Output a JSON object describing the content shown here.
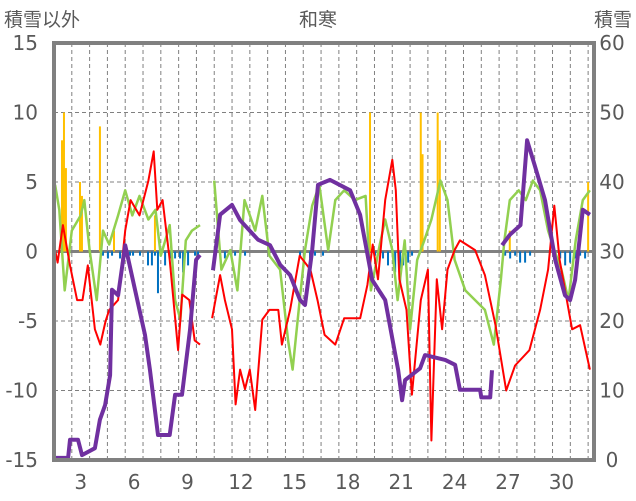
{
  "chart_data": {
    "type": "line",
    "title": "和寒",
    "ylabel_left": "積雪以外",
    "ylabel_right": "積雪",
    "xlim": [
      2,
      32.33
    ],
    "ylim_left": [
      -15,
      15
    ],
    "ylim_right": [
      0,
      60
    ],
    "yticks_left": [
      -15,
      -10,
      -5,
      0,
      5,
      10,
      15
    ],
    "yticks_right": [
      0,
      10,
      20,
      30,
      40,
      50,
      60
    ],
    "xtick_labels": [
      "3",
      "6",
      "9",
      "12",
      "15",
      "18",
      "21",
      "24",
      "27",
      "30"
    ],
    "xtick_days": [
      3,
      6,
      9,
      12,
      15,
      18,
      21,
      24,
      27,
      30
    ],
    "grid": true,
    "colors": {
      "snow": "#7030a0",
      "red": "#ff0000",
      "green": "#92d050",
      "yellow": "#ffc000",
      "blue": "#0070c0",
      "axis": "#808080"
    },
    "series": [
      {
        "name": "red",
        "axis": "left",
        "points": [
          [
            2.06,
            0.1
          ],
          [
            2.2,
            -0.8
          ],
          [
            2.5,
            1.9
          ],
          [
            2.9,
            -1
          ],
          [
            3.3,
            -3.5
          ],
          [
            3.6,
            -3.5
          ],
          [
            3.9,
            -1
          ],
          [
            4.3,
            -5.6
          ],
          [
            4.6,
            -6.7
          ],
          [
            4.9,
            -5
          ],
          [
            5.1,
            -4.2
          ],
          [
            5.6,
            -3.5
          ],
          [
            6.0,
            1.5
          ],
          [
            6.3,
            3.7
          ],
          [
            6.8,
            2.6
          ],
          [
            7.3,
            5.1
          ],
          [
            7.6,
            7.2
          ],
          [
            7.8,
            3
          ],
          [
            8.1,
            3.7
          ],
          [
            8.5,
            -0.6
          ],
          [
            8.97,
            -7.1
          ],
          [
            9.2,
            -3.1
          ],
          [
            9.6,
            -3.5
          ],
          [
            9.9,
            -6.4
          ],
          [
            10.2,
            -6.7
          ],
          null,
          [
            10.88,
            -4.8
          ],
          [
            11.33,
            -1.7
          ],
          [
            11.6,
            -3.5
          ],
          [
            12.0,
            -5.6
          ],
          [
            12.2,
            -11
          ],
          [
            12.45,
            -8.5
          ],
          [
            12.73,
            -9.9
          ],
          [
            13.0,
            -8.5
          ],
          [
            13.3,
            -11.4
          ],
          [
            13.7,
            -4.9
          ],
          [
            14.1,
            -4.2
          ],
          [
            14.6,
            -4.2
          ],
          [
            14.8,
            -6.7
          ],
          [
            15.26,
            -4.2
          ],
          [
            15.8,
            -0.3
          ],
          [
            16.4,
            -1.3
          ],
          [
            16.8,
            -3.5
          ],
          [
            17.2,
            -6
          ],
          [
            17.8,
            -6.7
          ],
          [
            18.3,
            -4.8
          ],
          [
            19.2,
            -4.8
          ],
          [
            19.6,
            -2.4
          ],
          [
            19.9,
            0.5
          ],
          [
            20.2,
            -2
          ],
          [
            20.6,
            3.7
          ],
          [
            21.0,
            6.6
          ],
          [
            21.2,
            4.4
          ],
          [
            21.4,
            -2
          ],
          [
            21.8,
            -4.2
          ],
          [
            22.1,
            -10.3
          ],
          [
            22.6,
            -3.5
          ],
          [
            23.0,
            -1.3
          ],
          [
            23.2,
            -13.6
          ],
          [
            23.5,
            -2
          ],
          [
            23.8,
            -5.6
          ],
          [
            24.1,
            -1.3
          ],
          [
            24.5,
            0.1
          ],
          [
            24.8,
            0.8
          ],
          [
            25.65,
            0.1
          ],
          [
            26.2,
            -1.7
          ],
          [
            26.8,
            -5.3
          ],
          [
            27.4,
            -10
          ],
          [
            27.9,
            -8.2
          ],
          [
            28.7,
            -7.1
          ],
          [
            29.3,
            -4.2
          ],
          [
            29.75,
            -1.3
          ],
          [
            30.1,
            3.3
          ],
          [
            30.4,
            -0.6
          ],
          [
            31.1,
            -5.6
          ],
          [
            31.55,
            -5.3
          ],
          [
            32.1,
            -8.5
          ]
        ]
      },
      {
        "name": "green",
        "axis": "left",
        "points": [
          [
            2.06,
            4.8
          ],
          [
            2.3,
            3
          ],
          [
            2.6,
            -2.8
          ],
          [
            3.0,
            1.5
          ],
          [
            3.5,
            2.6
          ],
          [
            3.7,
            3.7
          ],
          [
            4.0,
            0.1
          ],
          [
            4.4,
            -3.5
          ],
          [
            4.75,
            1.5
          ],
          [
            5.1,
            0.5
          ],
          [
            5.6,
            2.6
          ],
          [
            6.0,
            4.4
          ],
          [
            6.4,
            2.6
          ],
          [
            6.8,
            4.0
          ],
          [
            7.3,
            2.3
          ],
          [
            7.7,
            3
          ],
          [
            8.0,
            -0.3
          ],
          [
            8.5,
            1.9
          ],
          [
            8.8,
            -3.5
          ],
          [
            9.1,
            -4.9
          ],
          [
            9.4,
            0.8
          ],
          [
            9.75,
            1.5
          ],
          [
            10.2,
            1.9
          ],
          null,
          [
            11.0,
            5.1
          ],
          [
            11.4,
            -1.3
          ],
          [
            11.9,
            0.1
          ],
          [
            12.3,
            -2.8
          ],
          [
            12.7,
            3.7
          ],
          [
            13.3,
            1.5
          ],
          [
            13.7,
            4
          ],
          [
            14.1,
            -0.3
          ],
          [
            14.7,
            -1.3
          ],
          [
            15.15,
            -6.4
          ],
          [
            15.4,
            -8.5
          ],
          [
            15.8,
            -3.5
          ],
          [
            16.1,
            0.1
          ],
          [
            16.5,
            3.3
          ],
          [
            16.9,
            4.8
          ],
          [
            17.4,
            0.1
          ],
          [
            17.8,
            3.7
          ],
          [
            18.3,
            4.4
          ],
          [
            18.9,
            3.7
          ],
          [
            19.5,
            4
          ],
          [
            19.8,
            -2.8
          ],
          [
            20.3,
            0.5
          ],
          [
            20.6,
            2.3
          ],
          [
            21.0,
            0.1
          ],
          [
            21.3,
            -3.5
          ],
          [
            21.7,
            0.8
          ],
          [
            22.0,
            -5.6
          ],
          [
            22.4,
            -0.6
          ],
          [
            22.8,
            0.8
          ],
          [
            23.2,
            2.3
          ],
          [
            23.7,
            5.1
          ],
          [
            24.1,
            3.7
          ],
          [
            24.5,
            -0.6
          ],
          [
            25.1,
            -2.8
          ],
          [
            25.65,
            -3.5
          ],
          [
            26.2,
            -4.2
          ],
          [
            26.7,
            -6.7
          ],
          [
            27.1,
            -2
          ],
          [
            27.3,
            0.8
          ],
          [
            27.6,
            3.7
          ],
          [
            28.1,
            4.4
          ],
          [
            28.5,
            3.7
          ],
          [
            28.9,
            5.1
          ],
          [
            29.3,
            4.4
          ],
          [
            29.75,
            1.5
          ],
          [
            30.1,
            0.1
          ],
          [
            30.5,
            -1.3
          ],
          [
            30.9,
            -3.5
          ],
          [
            31.3,
            0.8
          ],
          [
            31.7,
            3.7
          ],
          [
            32.1,
            4.4
          ]
        ]
      },
      {
        "name": "snow-depth",
        "axis": "right",
        "points": [
          [
            2.06,
            0.3
          ],
          [
            2.79,
            0.3
          ],
          [
            2.9,
            2.9
          ],
          [
            3.35,
            2.9
          ],
          [
            3.57,
            0.7
          ],
          [
            4.3,
            1.7
          ],
          [
            4.58,
            5.8
          ],
          [
            4.87,
            7.9
          ],
          [
            5.15,
            12.2
          ],
          [
            5.26,
            24.5
          ],
          [
            5.6,
            23.7
          ],
          [
            6.0,
            30.9
          ],
          [
            6.55,
            24.5
          ],
          [
            7.11,
            18
          ],
          [
            7.39,
            12.9
          ],
          [
            7.84,
            3.6
          ],
          [
            8.5,
            3.6
          ],
          [
            8.8,
            9.4
          ],
          [
            9.19,
            9.4
          ],
          [
            9.64,
            18.7
          ],
          [
            9.98,
            28.8
          ],
          [
            10.2,
            29.5
          ],
          null,
          [
            10.93,
            27.3
          ],
          [
            11.33,
            35.3
          ],
          [
            12.0,
            36.7
          ],
          [
            12.45,
            34.5
          ],
          [
            13.46,
            31.7
          ],
          [
            14.13,
            30.9
          ],
          [
            14.7,
            28.1
          ],
          [
            15.26,
            26.6
          ],
          [
            15.82,
            23
          ],
          [
            16.1,
            22.3
          ],
          [
            16.5,
            30.2
          ],
          [
            16.83,
            39.6
          ],
          [
            17.5,
            40.3
          ],
          [
            18.63,
            38.8
          ],
          [
            19.19,
            35.3
          ],
          [
            19.87,
            25.9
          ],
          [
            20.6,
            23
          ],
          [
            21.33,
            12.9
          ],
          [
            21.55,
            8.6
          ],
          [
            21.72,
            11.5
          ],
          [
            22.56,
            13.2
          ],
          [
            22.84,
            15.1
          ],
          [
            23.97,
            14.4
          ],
          [
            24.53,
            13.7
          ],
          [
            24.8,
            10.1
          ],
          [
            25.93,
            10.1
          ],
          [
            26.0,
            9
          ],
          [
            26.5,
            9
          ],
          [
            26.6,
            12.9
          ],
          null,
          [
            27.17,
            30.9
          ],
          [
            27.6,
            32.4
          ],
          [
            28.2,
            33.8
          ],
          [
            28.57,
            46
          ],
          [
            29.0,
            42.4
          ],
          [
            29.58,
            37.4
          ],
          [
            30.15,
            28.8
          ],
          [
            30.7,
            23.7
          ],
          [
            30.99,
            23
          ],
          [
            31.27,
            25.9
          ],
          [
            31.55,
            32.4
          ],
          [
            31.7,
            36
          ],
          [
            32.1,
            35.3
          ]
        ]
      }
    ],
    "bars": [
      {
        "name": "yellow",
        "axis": "left",
        "points": [
          [
            2.45,
            8
          ],
          [
            2.56,
            10
          ],
          [
            2.67,
            6
          ],
          [
            3.46,
            5
          ],
          [
            3.57,
            4
          ],
          [
            4.58,
            9
          ],
          [
            5.37,
            1.5
          ],
          [
            7.67,
            2.6
          ],
          [
            19.75,
            10
          ],
          [
            22.6,
            10
          ],
          [
            22.7,
            7
          ],
          [
            23.55,
            10
          ],
          [
            23.67,
            8
          ],
          [
            27.6,
            1.5
          ],
          [
            32.0,
            5
          ]
        ]
      },
      {
        "name": "blue",
        "axis": "left",
        "points": [
          [
            4.75,
            -0.3
          ],
          [
            5.03,
            -0.5
          ],
          [
            5.26,
            -0.3
          ],
          [
            5.71,
            -0.5
          ],
          [
            5.88,
            -0.3
          ],
          [
            6.27,
            -0.3
          ],
          [
            6.44,
            -0.3
          ],
          [
            6.83,
            -0.3
          ],
          [
            7.28,
            -1
          ],
          [
            7.5,
            -1
          ],
          [
            7.67,
            -0.3
          ],
          [
            7.84,
            -3
          ],
          [
            8.24,
            -1
          ],
          [
            8.52,
            -0.5
          ],
          [
            8.8,
            -0.5
          ],
          [
            9.08,
            -0.5
          ],
          [
            9.25,
            -1.5
          ],
          [
            9.53,
            -1
          ],
          [
            9.92,
            -0.3
          ],
          [
            10.09,
            -0.3
          ],
          [
            11.04,
            -0.3
          ],
          [
            11.6,
            -0.5
          ],
          [
            12.17,
            -0.3
          ],
          [
            12.73,
            -0.3
          ],
          [
            15.82,
            -0.3
          ],
          [
            16.38,
            -0.5
          ],
          [
            16.66,
            -0.3
          ],
          [
            17.11,
            -0.3
          ],
          [
            20.03,
            -0.3
          ],
          [
            20.48,
            -0.5
          ],
          [
            20.76,
            -1
          ],
          [
            21.16,
            -1.5
          ],
          [
            21.44,
            -2.5
          ],
          [
            21.61,
            -1
          ],
          [
            21.89,
            -0.8
          ],
          [
            22.11,
            -0.3
          ],
          [
            27.34,
            -0.3
          ],
          [
            27.62,
            -0.5
          ],
          [
            27.9,
            -0.3
          ],
          [
            28.18,
            -0.8
          ],
          [
            28.46,
            -0.8
          ],
          [
            28.74,
            -0.3
          ],
          [
            30.43,
            -0.5
          ],
          [
            30.71,
            -1
          ],
          [
            30.99,
            -0.8
          ],
          [
            31.27,
            -0.5
          ],
          [
            31.55,
            -0.3
          ],
          [
            31.83,
            -0.5
          ]
        ]
      }
    ]
  }
}
